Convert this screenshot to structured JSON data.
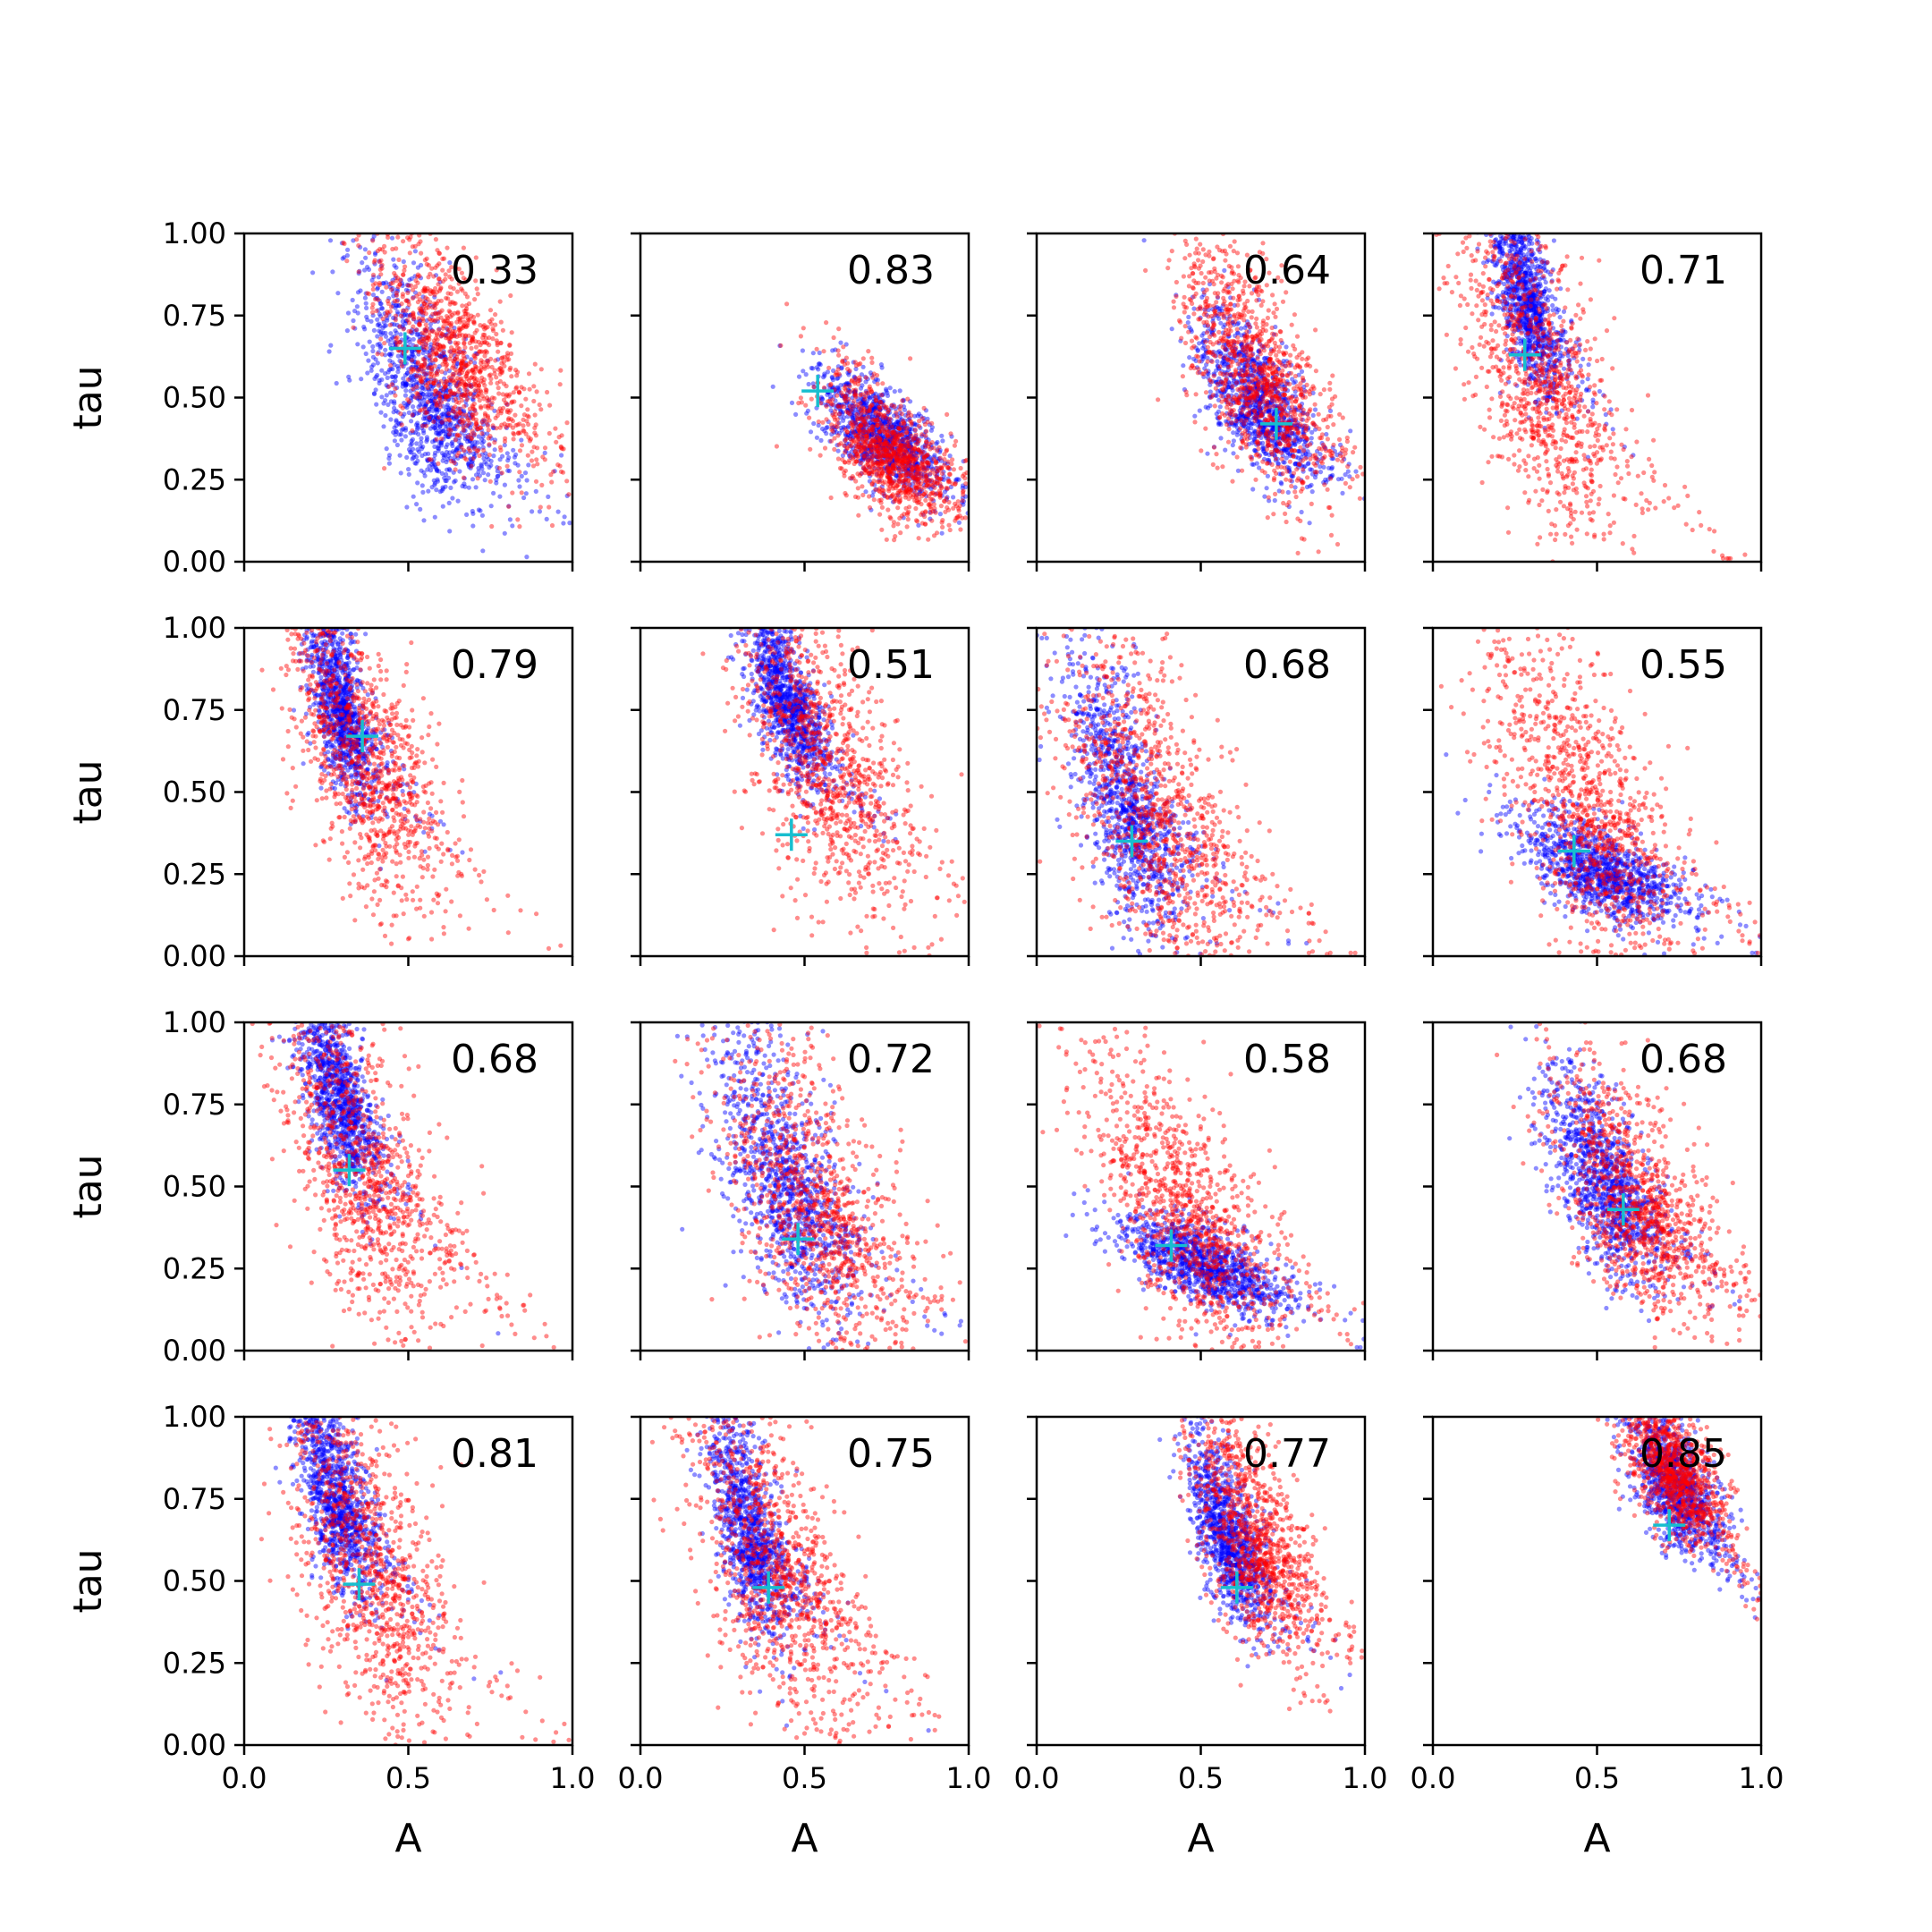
{
  "chart_data": {
    "type": "scatter",
    "layout": {
      "rows": 4,
      "cols": 4
    },
    "xlabel": "A",
    "ylabel": "tau",
    "xlim": [
      0.0,
      1.0
    ],
    "ylim": [
      0.0,
      1.0
    ],
    "xticks": [
      "0.0",
      "0.5",
      "1.0"
    ],
    "yticks": [
      "0.00",
      "0.25",
      "0.50",
      "0.75",
      "1.00"
    ],
    "grid": false,
    "colors": {
      "series_a": "#0000ff",
      "series_b": "#ff0000",
      "marker": "#17becf"
    },
    "panels": [
      {
        "value": "0.33",
        "marker": [
          0.49,
          0.65
        ],
        "blue": {
          "center": [
            0.55,
            0.5
          ],
          "spread": [
            0.12,
            0.18
          ]
        },
        "red": {
          "center": [
            0.63,
            0.62
          ],
          "spread": [
            0.14,
            0.18
          ]
        }
      },
      {
        "value": "0.83",
        "marker": [
          0.54,
          0.52
        ],
        "blue": {
          "center": [
            0.73,
            0.38
          ],
          "spread": [
            0.11,
            0.09
          ]
        },
        "red": {
          "center": [
            0.75,
            0.33
          ],
          "spread": [
            0.12,
            0.12
          ]
        }
      },
      {
        "value": "0.64",
        "marker": [
          0.73,
          0.42
        ],
        "blue": {
          "center": [
            0.67,
            0.48
          ],
          "spread": [
            0.1,
            0.12
          ]
        },
        "red": {
          "center": [
            0.66,
            0.56
          ],
          "spread": [
            0.13,
            0.2
          ]
        }
      },
      {
        "value": "0.71",
        "marker": [
          0.28,
          0.63
        ],
        "blue": {
          "center": [
            0.28,
            0.8
          ],
          "spread": [
            0.06,
            0.16
          ]
        },
        "red": {
          "center": [
            0.3,
            0.6
          ],
          "spread": [
            0.15,
            0.3
          ]
        }
      },
      {
        "value": "0.79",
        "marker": [
          0.36,
          0.67
        ],
        "blue": {
          "center": [
            0.29,
            0.75
          ],
          "spread": [
            0.06,
            0.15
          ]
        },
        "red": {
          "center": [
            0.36,
            0.6
          ],
          "spread": [
            0.14,
            0.25
          ]
        }
      },
      {
        "value": "0.51",
        "marker": [
          0.46,
          0.37
        ],
        "blue": {
          "center": [
            0.44,
            0.78
          ],
          "spread": [
            0.07,
            0.14
          ]
        },
        "red": {
          "center": [
            0.55,
            0.6
          ],
          "spread": [
            0.16,
            0.28
          ]
        }
      },
      {
        "value": "0.68",
        "marker": [
          0.29,
          0.35
        ],
        "blue": {
          "center": [
            0.27,
            0.45
          ],
          "spread": [
            0.1,
            0.22
          ]
        },
        "red": {
          "center": [
            0.35,
            0.42
          ],
          "spread": [
            0.18,
            0.28
          ]
        }
      },
      {
        "value": "0.55",
        "marker": [
          0.43,
          0.32
        ],
        "blue": {
          "center": [
            0.5,
            0.26
          ],
          "spread": [
            0.14,
            0.08
          ]
        },
        "red": {
          "center": [
            0.47,
            0.42
          ],
          "spread": [
            0.17,
            0.25
          ]
        }
      },
      {
        "value": "0.68",
        "marker": [
          0.32,
          0.55
        ],
        "blue": {
          "center": [
            0.28,
            0.78
          ],
          "spread": [
            0.07,
            0.16
          ]
        },
        "red": {
          "center": [
            0.35,
            0.55
          ],
          "spread": [
            0.15,
            0.3
          ]
        }
      },
      {
        "value": "0.72",
        "marker": [
          0.48,
          0.34
        ],
        "blue": {
          "center": [
            0.44,
            0.5
          ],
          "spread": [
            0.12,
            0.22
          ]
        },
        "red": {
          "center": [
            0.53,
            0.42
          ],
          "spread": [
            0.18,
            0.28
          ]
        }
      },
      {
        "value": "0.58",
        "marker": [
          0.41,
          0.32
        ],
        "blue": {
          "center": [
            0.5,
            0.26
          ],
          "spread": [
            0.14,
            0.07
          ]
        },
        "red": {
          "center": [
            0.45,
            0.4
          ],
          "spread": [
            0.17,
            0.22
          ]
        }
      },
      {
        "value": "0.68",
        "marker": [
          0.58,
          0.43
        ],
        "blue": {
          "center": [
            0.52,
            0.5
          ],
          "spread": [
            0.1,
            0.16
          ]
        },
        "red": {
          "center": [
            0.62,
            0.44
          ],
          "spread": [
            0.15,
            0.2
          ]
        }
      },
      {
        "value": "0.81",
        "marker": [
          0.35,
          0.49
        ],
        "blue": {
          "center": [
            0.28,
            0.75
          ],
          "spread": [
            0.07,
            0.16
          ]
        },
        "red": {
          "center": [
            0.38,
            0.55
          ],
          "spread": [
            0.15,
            0.3
          ]
        }
      },
      {
        "value": "0.75",
        "marker": [
          0.39,
          0.48
        ],
        "blue": {
          "center": [
            0.33,
            0.65
          ],
          "spread": [
            0.07,
            0.18
          ]
        },
        "red": {
          "center": [
            0.4,
            0.55
          ],
          "spread": [
            0.15,
            0.28
          ]
        }
      },
      {
        "value": "0.77",
        "marker": [
          0.61,
          0.48
        ],
        "blue": {
          "center": [
            0.58,
            0.62
          ],
          "spread": [
            0.07,
            0.14
          ]
        },
        "red": {
          "center": [
            0.66,
            0.62
          ],
          "spread": [
            0.11,
            0.2
          ]
        }
      },
      {
        "value": "0.85",
        "marker": [
          0.72,
          0.67
        ],
        "blue": {
          "center": [
            0.73,
            0.8
          ],
          "spread": [
            0.08,
            0.12
          ]
        },
        "red": {
          "center": [
            0.72,
            0.85
          ],
          "spread": [
            0.09,
            0.12
          ]
        }
      }
    ]
  }
}
